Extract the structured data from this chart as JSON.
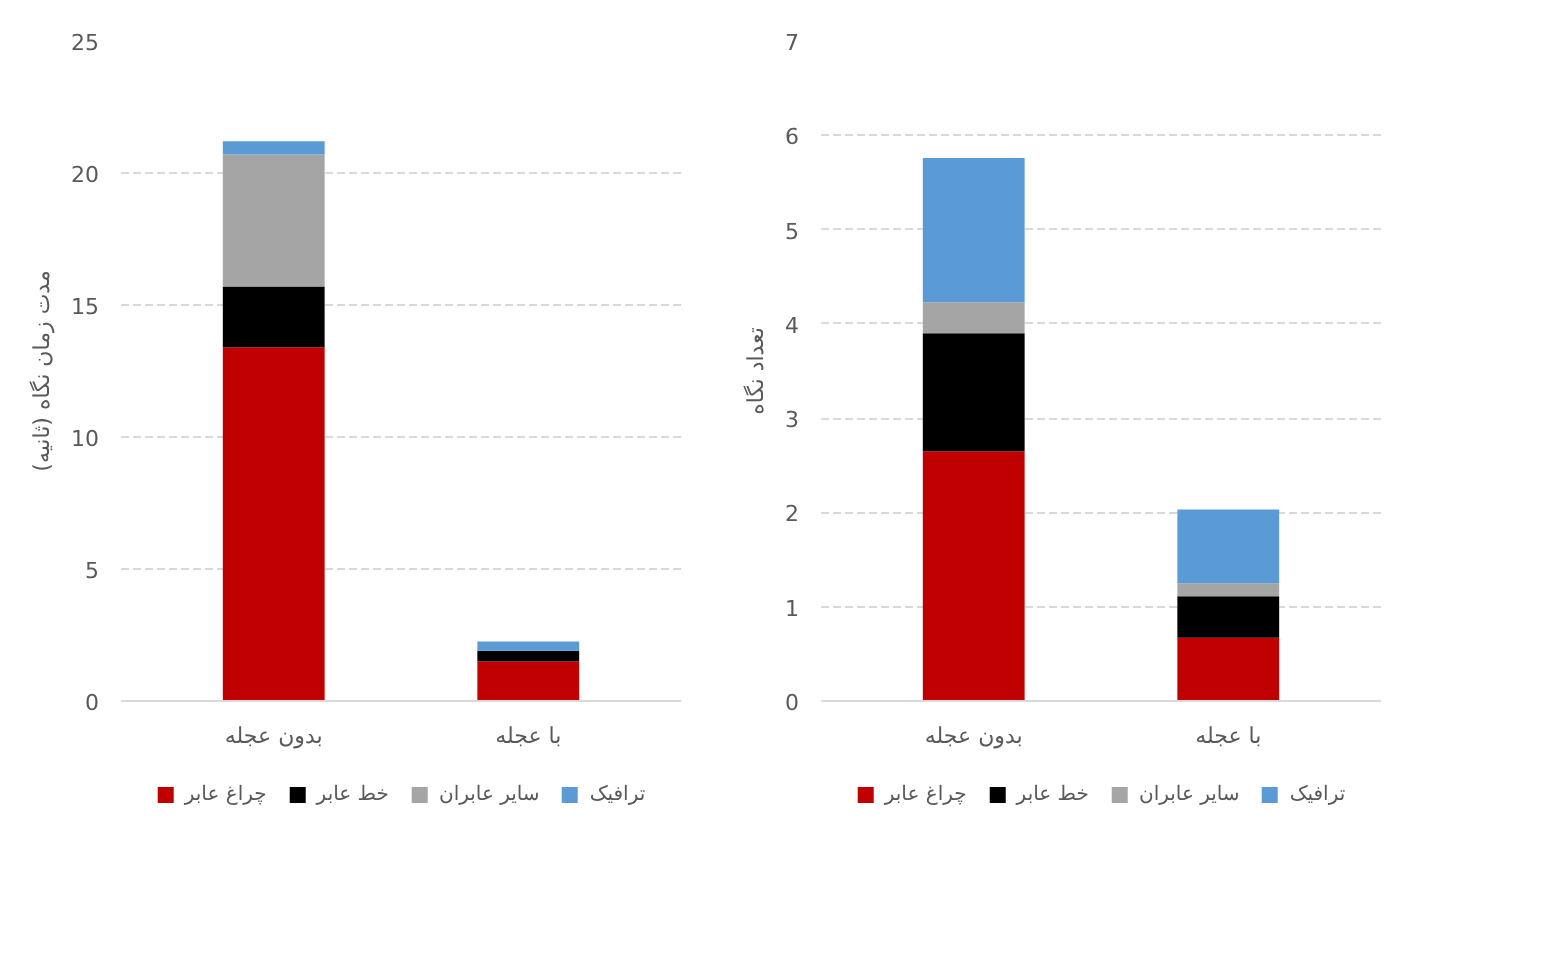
{
  "chart_data": [
    {
      "type": "bar",
      "stacked": true,
      "ylabel": "مدت زمان نگاه (ثانیه)",
      "categories": [
        "بدون عجله",
        "با عجله"
      ],
      "series": [
        {
          "name": "چراغ عابر",
          "color": "#c00000",
          "values": [
            13.4,
            1.5
          ]
        },
        {
          "name": "خط عابر",
          "color": "#000000",
          "values": [
            2.3,
            0.4
          ]
        },
        {
          "name": "سایر عابران",
          "color": "#a5a5a5",
          "values": [
            5.0,
            0
          ]
        },
        {
          "name": "ترافیک",
          "color": "#5b9bd5",
          "values": [
            0.5,
            0.35
          ]
        }
      ],
      "ylim": [
        0,
        25
      ],
      "yticks": [
        0,
        5,
        10,
        15,
        20,
        25
      ],
      "grid": "y",
      "legend": "bottom"
    },
    {
      "type": "bar",
      "stacked": true,
      "ylabel": "تعداد نگاه",
      "categories": [
        "بدون عجله",
        "با عجله"
      ],
      "series": [
        {
          "name": "چراغ عابر",
          "color": "#c00000",
          "values": [
            2.65,
            0.67
          ]
        },
        {
          "name": "خط عابر",
          "color": "#000000",
          "values": [
            1.25,
            0.44
          ]
        },
        {
          "name": "سایر عابران",
          "color": "#a5a5a5",
          "values": [
            0.33,
            0.14
          ]
        },
        {
          "name": "ترافیک",
          "color": "#5b9bd5",
          "values": [
            1.53,
            0.78
          ]
        }
      ],
      "ylim": [
        0,
        7
      ],
      "yticks": [
        0,
        1,
        2,
        3,
        4,
        5,
        6,
        7
      ],
      "grid": "y",
      "legend": "bottom"
    }
  ]
}
